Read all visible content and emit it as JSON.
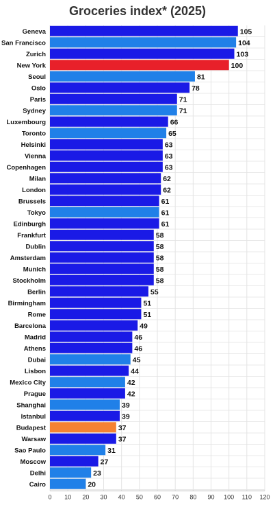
{
  "chart_data": {
    "type": "bar",
    "orientation": "horizontal",
    "title": "Groceries index* (2025)",
    "xlabel": "",
    "ylabel": "",
    "xlim": [
      0,
      120
    ],
    "xticks": [
      0,
      10,
      20,
      30,
      40,
      50,
      60,
      70,
      80,
      90,
      100,
      110,
      120
    ],
    "grid": "vertical",
    "categories": [
      "Geneva",
      "San Francisco",
      "Zurich",
      "New York",
      "Seoul",
      "Oslo",
      "Paris",
      "Sydney",
      "Luxembourg",
      "Toronto",
      "Helsinki",
      "Vienna",
      "Copenhagen",
      "Milan",
      "London",
      "Brussels",
      "Tokyo",
      "Edinburgh",
      "Frankfurt",
      "Dublin",
      "Amsterdam",
      "Munich",
      "Stockholm",
      "Berlin",
      "Birmingham",
      "Rome",
      "Barcelona",
      "Madrid",
      "Athens",
      "Dubai",
      "Lisbon",
      "Mexico City",
      "Prague",
      "Shanghai",
      "Istanbul",
      "Budapest",
      "Warsaw",
      "Sao Paulo",
      "Moscow",
      "Delhi",
      "Cairo"
    ],
    "values": [
      105,
      104,
      103,
      100,
      81,
      78,
      71,
      71,
      66,
      65,
      63,
      63,
      63,
      62,
      62,
      61,
      61,
      61,
      58,
      58,
      58,
      58,
      58,
      55,
      51,
      51,
      49,
      46,
      46,
      45,
      44,
      42,
      42,
      39,
      39,
      37,
      37,
      31,
      27,
      23,
      20
    ],
    "colors": {
      "europe": "#1a1ae6",
      "other": "#2080e8",
      "new_york": "#e8202a",
      "budapest": "#f58232"
    },
    "bar_color_groups": [
      "europe",
      "other",
      "europe",
      "new_york",
      "other",
      "europe",
      "europe",
      "other",
      "europe",
      "other",
      "europe",
      "europe",
      "europe",
      "europe",
      "europe",
      "europe",
      "other",
      "europe",
      "europe",
      "europe",
      "europe",
      "europe",
      "europe",
      "europe",
      "europe",
      "europe",
      "europe",
      "europe",
      "europe",
      "other",
      "europe",
      "other",
      "europe",
      "other",
      "europe",
      "budapest",
      "europe",
      "other",
      "europe",
      "other",
      "other"
    ]
  }
}
